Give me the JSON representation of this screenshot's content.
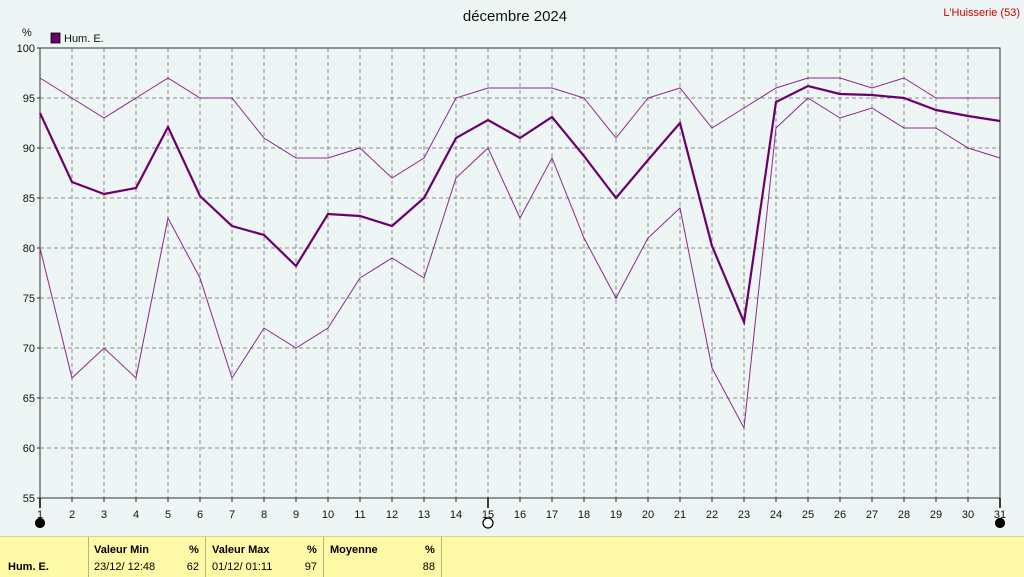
{
  "location": "L'Huisserie (53)",
  "chart_data": {
    "type": "line",
    "title": "décembre 2024",
    "ylabel": "%",
    "ylim": [
      55,
      100
    ],
    "yticks": [
      55,
      60,
      65,
      70,
      75,
      80,
      85,
      90,
      95,
      100
    ],
    "x": [
      1,
      2,
      3,
      4,
      5,
      6,
      7,
      8,
      9,
      10,
      11,
      12,
      13,
      14,
      15,
      16,
      17,
      18,
      19,
      20,
      21,
      22,
      23,
      24,
      25,
      26,
      27,
      28,
      29,
      30,
      31
    ],
    "grid": true,
    "legend": "top-left",
    "series": [
      {
        "name": "Hum. E.",
        "role": "mean",
        "color": "#6a006a",
        "values": [
          93.5,
          86.6,
          85.4,
          86,
          92.1,
          85.2,
          82.2,
          81.3,
          78.2,
          83.4,
          83.2,
          82.2,
          85,
          91,
          92.8,
          91,
          93.1,
          89.2,
          85,
          88.8,
          92.5,
          80.2,
          72.6,
          94.6,
          96.2,
          95.4,
          95.3,
          95,
          93.8,
          93.2,
          92.7
        ]
      },
      {
        "role": "max",
        "color": "#8a2a8a",
        "values": [
          97,
          95,
          93,
          95,
          97,
          95,
          95,
          91,
          89,
          89,
          90,
          87,
          89,
          95,
          96,
          96,
          96,
          95,
          91,
          95,
          96,
          92,
          94,
          96,
          97,
          97,
          96,
          97,
          95,
          95,
          95
        ]
      },
      {
        "role": "min",
        "color": "#8a2a8a",
        "values": [
          80,
          67,
          70,
          67,
          83,
          77,
          67,
          72,
          70,
          72,
          77,
          79,
          77,
          87,
          90,
          83,
          89,
          81,
          75,
          81,
          84,
          68,
          62,
          92,
          95,
          93,
          94,
          92,
          92,
          90,
          89
        ]
      }
    ],
    "x_markers": [
      {
        "day": 1,
        "symbol": "filled-circle"
      },
      {
        "day": 15,
        "symbol": "open-circle"
      },
      {
        "day": 31,
        "symbol": "filled-circle"
      }
    ]
  },
  "stats": {
    "row_label": "Hum. E.",
    "min": {
      "label": "Valeur Min",
      "unit": "%",
      "date": "23/12/  12:48",
      "value": "62"
    },
    "max": {
      "label": "Valeur Max",
      "unit": "%",
      "date": "01/12/  01:11",
      "value": "97"
    },
    "avg": {
      "label": "Moyenne",
      "unit": "%",
      "value": "88"
    }
  }
}
